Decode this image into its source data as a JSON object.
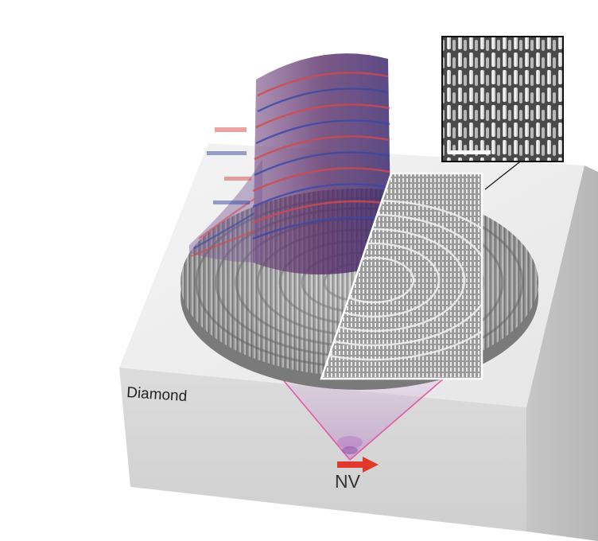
{
  "labels": {
    "substrate": "Diamond",
    "emitter": "NV"
  },
  "colors": {
    "substrate_top": "#efefef",
    "substrate_left": "#d4d4d4",
    "substrate_right": "#bcbcbc",
    "pillars": "#8a8a8a",
    "beam_cone": "#e25aa6",
    "nv_arrow": "#e0392b",
    "field_red": "#d24a4a",
    "field_blue": "#3848a8"
  },
  "icons": {
    "emitter_dipole": "right-arrow-icon",
    "sem_inset": "sem-micrograph",
    "sem_inset_scale_bar": "scale-bar"
  }
}
